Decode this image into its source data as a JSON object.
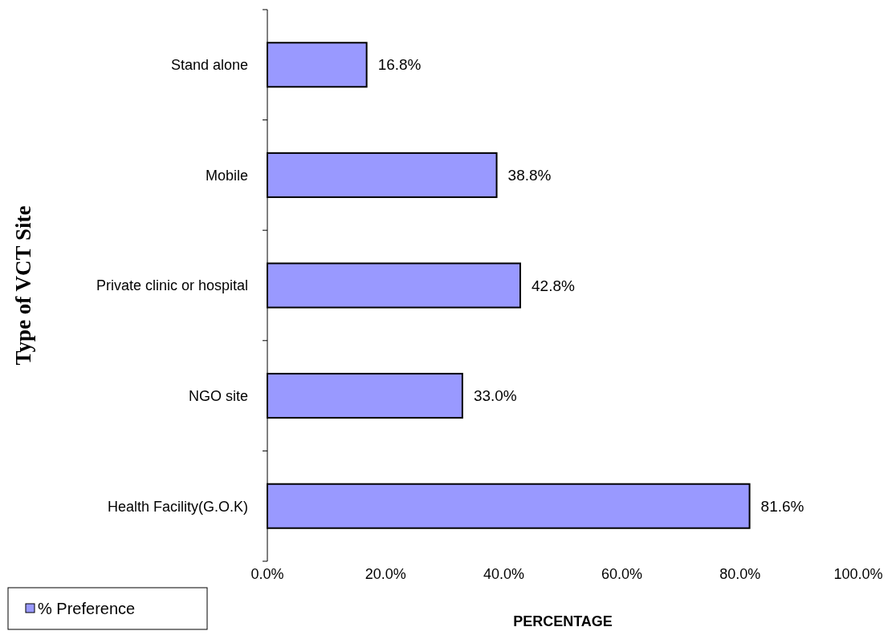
{
  "chart_data": {
    "type": "bar",
    "orientation": "horizontal",
    "ylabel": "Type of VCT Site",
    "xlabel": "PERCENTAGE",
    "categories": [
      "Stand alone",
      "Mobile",
      "Private clinic or hospital",
      "NGO site",
      "Health Facility(G.O.K)"
    ],
    "series": [
      {
        "name": "% Preference",
        "color": "#9999ff",
        "values": [
          16.8,
          38.8,
          42.8,
          33.0,
          81.6
        ],
        "value_labels": [
          "16.8%",
          "38.8%",
          "42.8%",
          "33.0%",
          "81.6%"
        ]
      }
    ],
    "xlim": [
      0,
      100
    ],
    "xticks": [
      {
        "value": 0,
        "label": "0.0%"
      },
      {
        "value": 20,
        "label": "20.0%"
      },
      {
        "value": 40,
        "label": "40.0%"
      },
      {
        "value": 60,
        "label": "60.0%"
      },
      {
        "value": 80,
        "label": "80.0%"
      },
      {
        "value": 100,
        "label": "100.0%"
      }
    ],
    "grid": false,
    "legend": "bottom left"
  }
}
